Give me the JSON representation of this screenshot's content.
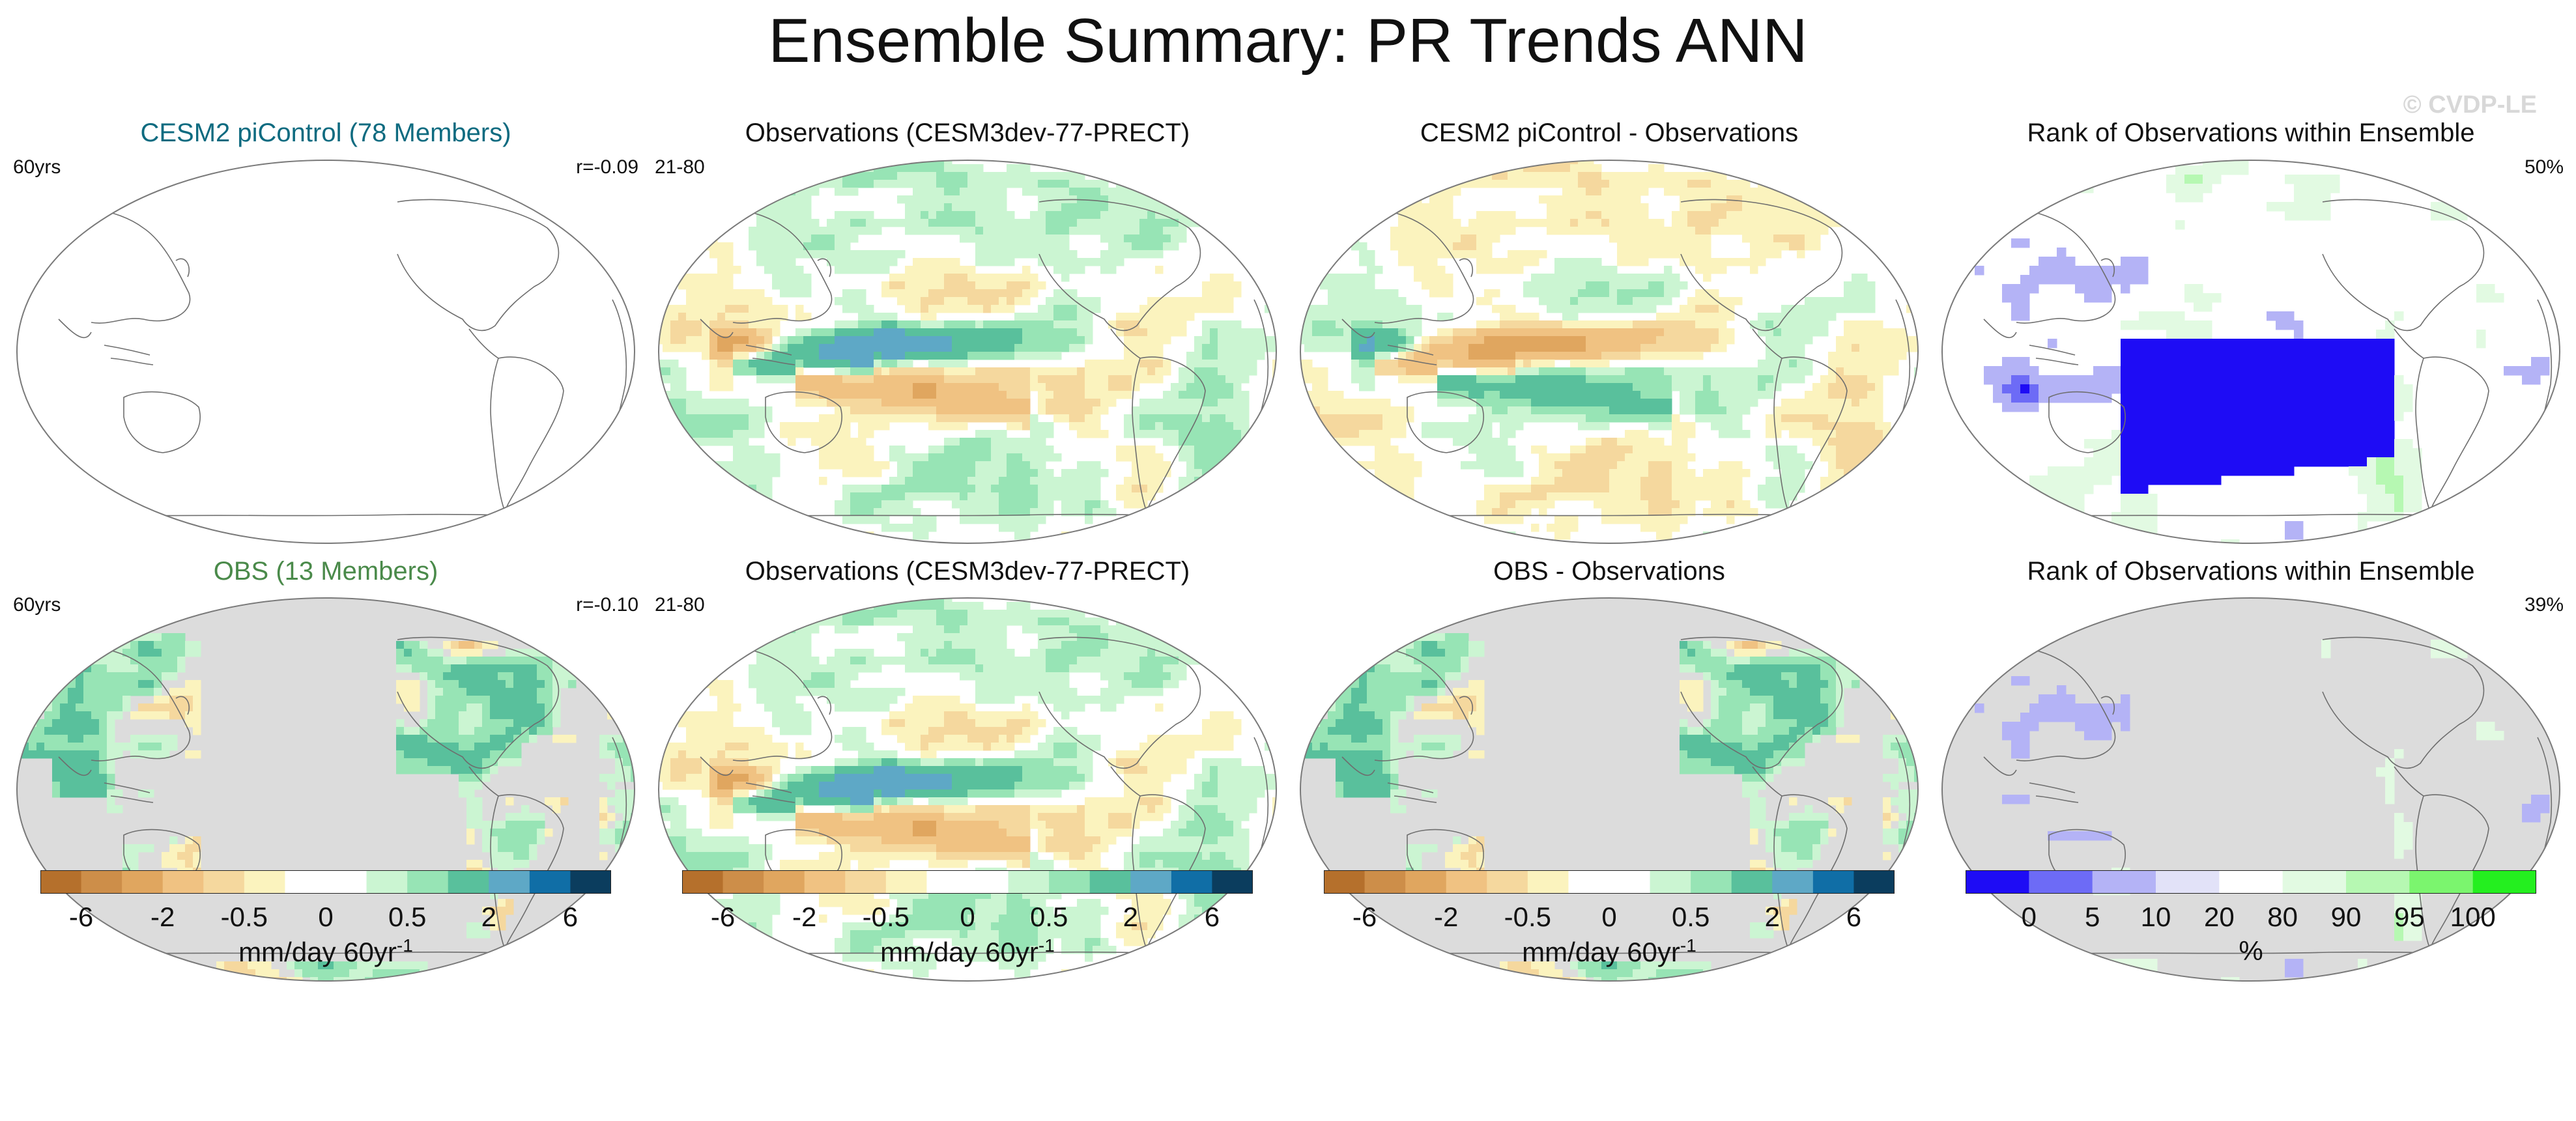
{
  "page": {
    "title": "Ensemble Summary: PR Trends ANN",
    "watermark": "© CVDP-LE"
  },
  "chart_data": [
    {
      "type": "heatmap",
      "row": 0,
      "col": 0,
      "title": "CESM2 piControl (78 Members)",
      "title_color": "#0e6b80",
      "left_note": "60yrs",
      "right_note": "r=-0.09",
      "land_mask": false,
      "palette": "trend",
      "pattern": "blank"
    },
    {
      "type": "heatmap",
      "row": 0,
      "col": 1,
      "title": "Observations (CESM3dev-77-PRECT)",
      "title_color": "#111111",
      "left_note": "21-80",
      "right_note": "",
      "land_mask": false,
      "palette": "trend",
      "pattern": "obs"
    },
    {
      "type": "heatmap",
      "row": 0,
      "col": 2,
      "title": "CESM2 piControl - Observations",
      "title_color": "#111111",
      "left_note": "",
      "right_note": "",
      "land_mask": false,
      "palette": "trend",
      "pattern": "diff"
    },
    {
      "type": "heatmap",
      "row": 0,
      "col": 3,
      "title": "Rank of Observations within Ensemble",
      "title_color": "#111111",
      "left_note": "",
      "right_note": "50%",
      "land_mask": false,
      "palette": "rank",
      "pattern": "rank"
    },
    {
      "type": "heatmap",
      "row": 1,
      "col": 0,
      "title": "OBS (13 Members)",
      "title_color": "#4a8a4a",
      "left_note": "60yrs",
      "right_note": "r=-0.10",
      "land_mask": true,
      "palette": "trend",
      "pattern": "ens_land"
    },
    {
      "type": "heatmap",
      "row": 1,
      "col": 1,
      "title": "Observations (CESM3dev-77-PRECT)",
      "title_color": "#111111",
      "left_note": "21-80",
      "right_note": "",
      "land_mask": false,
      "palette": "trend",
      "pattern": "obs"
    },
    {
      "type": "heatmap",
      "row": 1,
      "col": 2,
      "title": "OBS - Observations",
      "title_color": "#111111",
      "left_note": "",
      "right_note": "",
      "land_mask": true,
      "palette": "trend",
      "pattern": "diff_land"
    },
    {
      "type": "heatmap",
      "row": 1,
      "col": 3,
      "title": "Rank of Observations within Ensemble",
      "title_color": "#111111",
      "left_note": "",
      "right_note": "39%",
      "land_mask": true,
      "palette": "rank",
      "pattern": "rank_land"
    }
  ],
  "colorbars": [
    {
      "name": "trend-colorbar-1",
      "colors": [
        "#b5702c",
        "#cd8e49",
        "#e0a65f",
        "#f0c282",
        "#f5d89e",
        "#fbf3be",
        "#ffffff",
        "#ffffff",
        "#cbf5d2",
        "#97e4b5",
        "#59c09c",
        "#5ea8c6",
        "#106ea6",
        "#0b3d5e"
      ],
      "ticks": [
        "-6",
        "-2",
        "-0.5",
        "0",
        "0.5",
        "2",
        "6"
      ],
      "unit": "mm/day 60yr",
      "unit_sup": "-1"
    },
    {
      "name": "trend-colorbar-2",
      "colors": [
        "#b5702c",
        "#cd8e49",
        "#e0a65f",
        "#f0c282",
        "#f5d89e",
        "#fbf3be",
        "#ffffff",
        "#ffffff",
        "#cbf5d2",
        "#97e4b5",
        "#59c09c",
        "#5ea8c6",
        "#106ea6",
        "#0b3d5e"
      ],
      "ticks": [
        "-6",
        "-2",
        "-0.5",
        "0",
        "0.5",
        "2",
        "6"
      ],
      "unit": "mm/day 60yr",
      "unit_sup": "-1"
    },
    {
      "name": "trend-colorbar-3",
      "colors": [
        "#b5702c",
        "#cd8e49",
        "#e0a65f",
        "#f0c282",
        "#f5d89e",
        "#fbf3be",
        "#ffffff",
        "#ffffff",
        "#cbf5d2",
        "#97e4b5",
        "#59c09c",
        "#5ea8c6",
        "#106ea6",
        "#0b3d5e"
      ],
      "ticks": [
        "-6",
        "-2",
        "-0.5",
        "0",
        "0.5",
        "2",
        "6"
      ],
      "unit": "mm/day 60yr",
      "unit_sup": "-1"
    },
    {
      "name": "rank-colorbar",
      "colors": [
        "#1e0cf5",
        "#6d6bf6",
        "#b4b3f6",
        "#e2e2f8",
        "#ffffff",
        "#e2fae2",
        "#b6f8b2",
        "#7bf56e",
        "#24ef1f"
      ],
      "ticks": [
        "0",
        "5",
        "10",
        "20",
        "80",
        "90",
        "95",
        "100"
      ],
      "unit": "%",
      "unit_sup": ""
    }
  ]
}
